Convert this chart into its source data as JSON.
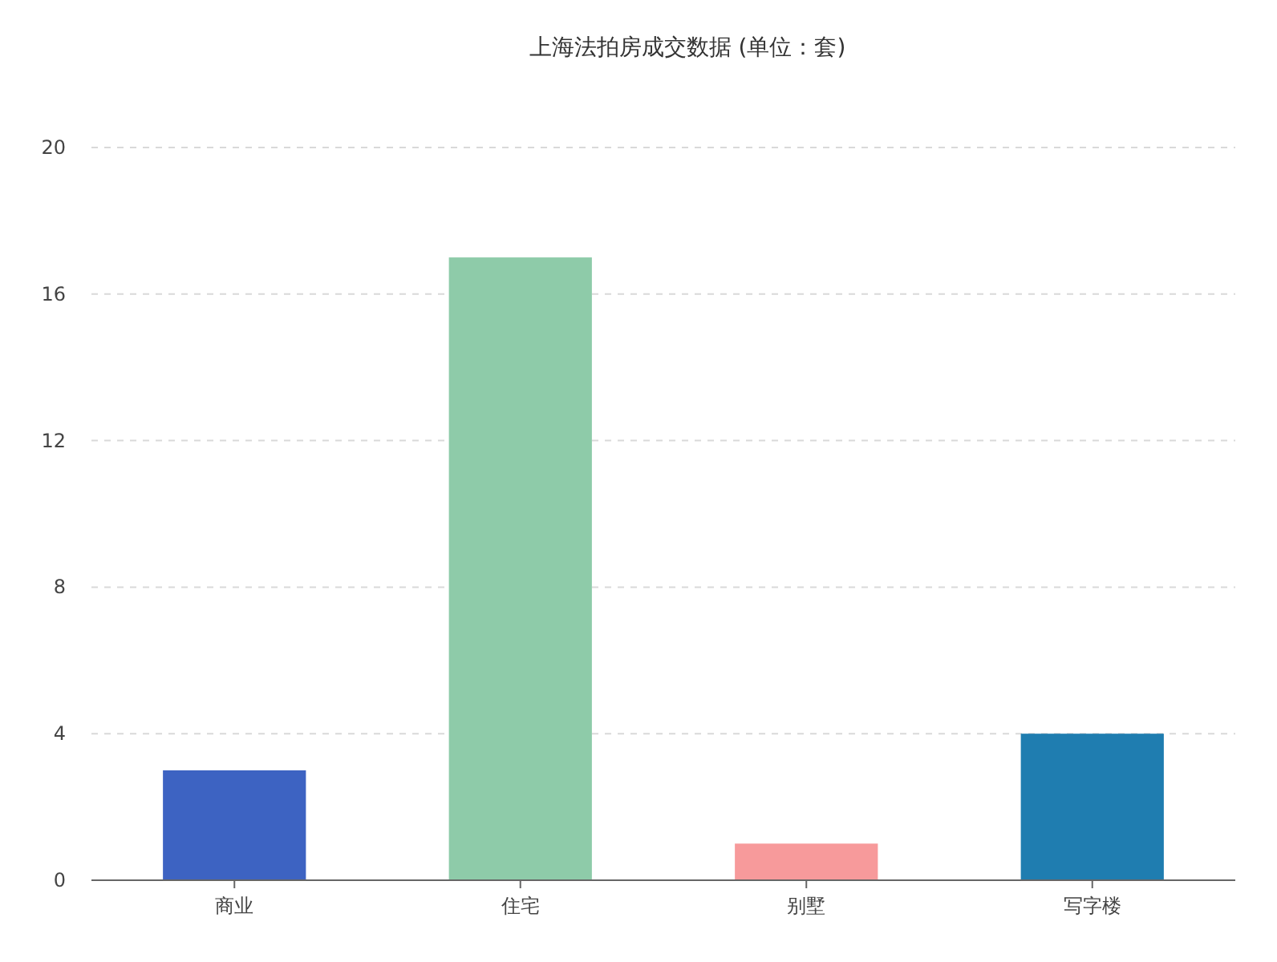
{
  "chart_data": {
    "type": "bar",
    "title": "上海法拍房成交数据 (单位：套)",
    "categories": [
      "商业",
      "住宅",
      "别墅",
      "写字楼"
    ],
    "values": [
      3,
      17,
      1,
      4
    ],
    "colors": [
      "#3d63c2",
      "#8ecba9",
      "#f79a9b",
      "#1f7db0"
    ],
    "ylim": [
      0,
      20
    ],
    "yticks": [
      0,
      4,
      8,
      12,
      16,
      20
    ],
    "grid": "y"
  }
}
